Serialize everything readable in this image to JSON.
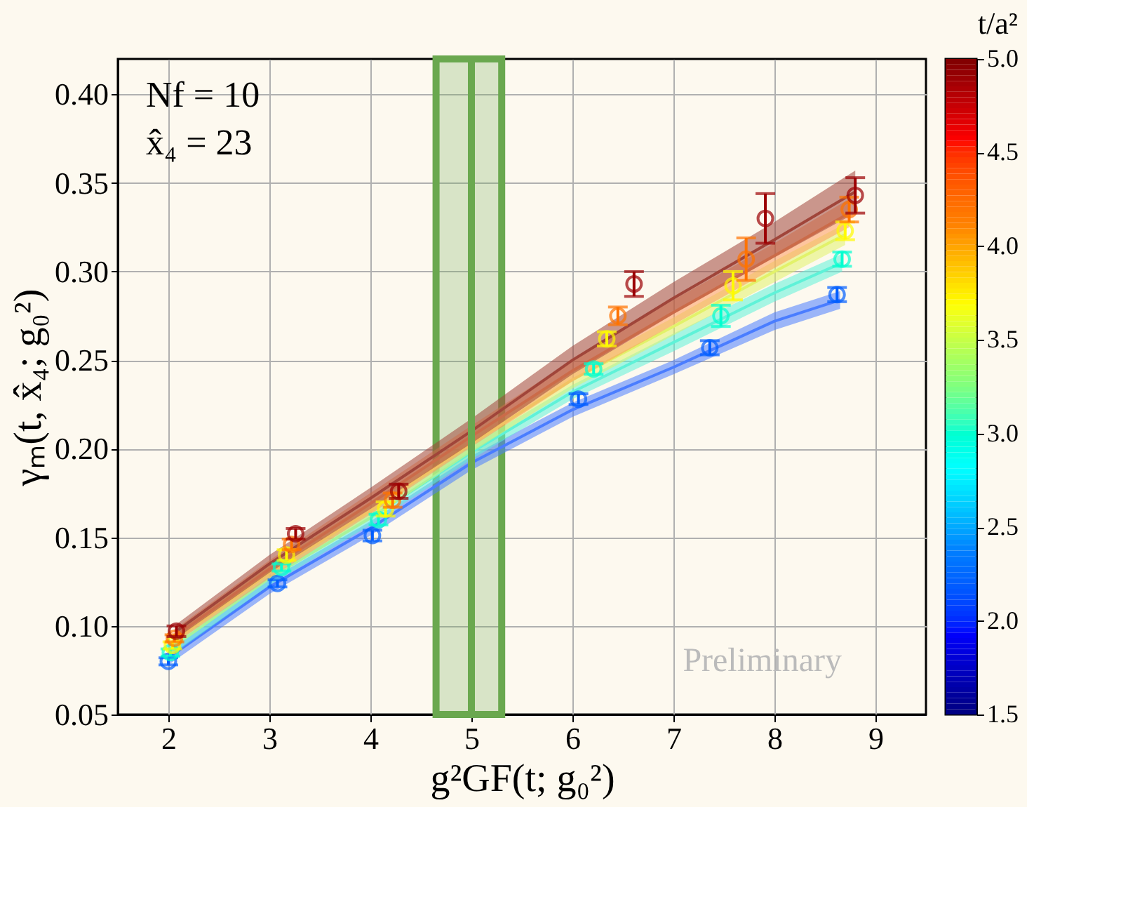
{
  "chart_data": {
    "type": "scatter",
    "xlabel": "g²GF(t; g₀²)",
    "ylabel": "γₘ(t, x̂₄; g₀²)",
    "legend_title": "t/a²",
    "annotations": [
      "Nf = 10",
      "x̂₄ = 23",
      "Preliminary"
    ],
    "xlim": [
      1.5,
      9.5
    ],
    "xticks": [
      2,
      3,
      4,
      5,
      6,
      7,
      8,
      9
    ],
    "ylim": [
      0.05,
      0.42
    ],
    "yticks": [
      0.05,
      {
        "value": 0.1,
        "label": "0.10"
      },
      0.15,
      {
        "value": 0.2,
        "label": "0.20"
      },
      0.25,
      {
        "value": 0.3,
        "label": "0.30"
      },
      0.35,
      {
        "value": 0.4,
        "label": "0.40"
      }
    ],
    "clim": [
      1.5,
      5.0
    ],
    "cticks": [
      1.5,
      {
        "value": 2,
        "label": "2.0"
      },
      2.5,
      {
        "value": 3,
        "label": "3.0"
      },
      3.5,
      {
        "value": 4,
        "label": "4.0"
      },
      4.5,
      {
        "value": 5,
        "label": "5.0"
      }
    ],
    "grid": true,
    "marker": "circle",
    "ref_lines": [
      {
        "axis": "x",
        "value": 5,
        "color": "#6aa84f"
      }
    ],
    "bands": [
      {
        "axis": "x",
        "from": 4.65,
        "to": 5.3,
        "color": "#6aa84f"
      }
    ],
    "series": [
      {
        "type": "line",
        "marker": "none",
        "color": "#4a7dff",
        "x": [
          2,
          3,
          4,
          5,
          6,
          7,
          8,
          8.65
        ],
        "values": [
          0.082,
          0.122,
          0.155,
          0.192,
          0.222,
          0.246,
          0.272,
          0.284
        ],
        "lower": [
          0.078,
          0.118,
          0.151,
          0.188,
          0.218,
          0.242,
          0.267,
          0.279
        ],
        "upper": [
          0.086,
          0.126,
          0.159,
          0.196,
          0.226,
          0.25,
          0.277,
          0.289
        ]
      },
      {
        "type": "line",
        "marker": "none",
        "color": "#5ff2d8",
        "x": [
          2.02,
          3,
          4,
          5,
          6,
          7,
          8,
          8.67
        ],
        "values": [
          0.087,
          0.127,
          0.161,
          0.198,
          0.232,
          0.26,
          0.288,
          0.305
        ],
        "lower": [
          0.083,
          0.123,
          0.157,
          0.194,
          0.228,
          0.255,
          0.283,
          0.3
        ],
        "upper": [
          0.091,
          0.131,
          0.165,
          0.202,
          0.236,
          0.265,
          0.293,
          0.31
        ]
      },
      {
        "type": "line",
        "marker": "none",
        "color": "#e2f26a",
        "x": [
          2.04,
          3,
          4,
          5,
          6,
          7,
          8,
          8.7
        ],
        "values": [
          0.091,
          0.13,
          0.165,
          0.203,
          0.239,
          0.269,
          0.3,
          0.321
        ],
        "lower": [
          0.087,
          0.126,
          0.16,
          0.198,
          0.234,
          0.264,
          0.294,
          0.315
        ],
        "upper": [
          0.095,
          0.134,
          0.17,
          0.208,
          0.244,
          0.274,
          0.306,
          0.327
        ]
      },
      {
        "type": "line",
        "marker": "none",
        "color": "#ff9a5c",
        "x": [
          2.06,
          3,
          4,
          5,
          6,
          7,
          8,
          8.74
        ],
        "values": [
          0.094,
          0.132,
          0.169,
          0.207,
          0.244,
          0.277,
          0.309,
          0.333
        ],
        "lower": [
          0.09,
          0.127,
          0.163,
          0.201,
          0.238,
          0.27,
          0.302,
          0.325
        ],
        "upper": [
          0.098,
          0.137,
          0.175,
          0.213,
          0.25,
          0.284,
          0.316,
          0.341
        ]
      },
      {
        "type": "line",
        "marker": "none",
        "color": "#a0453a",
        "x": [
          2.08,
          3,
          4,
          5,
          6,
          7,
          8,
          8.8
        ],
        "values": [
          0.097,
          0.135,
          0.172,
          0.21,
          0.25,
          0.285,
          0.318,
          0.345
        ],
        "lower": [
          0.093,
          0.13,
          0.166,
          0.203,
          0.242,
          0.276,
          0.308,
          0.333
        ],
        "upper": [
          0.101,
          0.14,
          0.178,
          0.217,
          0.258,
          0.294,
          0.328,
          0.357
        ]
      },
      {
        "x": [
          2.0,
          3.08,
          4.02,
          6.06,
          7.36,
          8.62
        ],
        "values": [
          0.08,
          0.124,
          0.151,
          0.228,
          0.257,
          0.287
        ],
        "errors": [
          0.002,
          0.002,
          0.003,
          0.003,
          0.004,
          0.004
        ],
        "cvalues": [
          2.2,
          2.2,
          2.2,
          2.2,
          2.2,
          2.2
        ]
      },
      {
        "x": [
          2.02,
          3.12,
          4.08,
          6.21,
          7.47,
          8.67
        ],
        "values": [
          0.085,
          0.133,
          0.16,
          0.245,
          0.275,
          0.307
        ],
        "errors": [
          0.002,
          0.002,
          0.003,
          0.003,
          0.006,
          0.004
        ],
        "cvalues": [
          3.0,
          3.0,
          3.0,
          3.0,
          3.0,
          3.0
        ]
      },
      {
        "x": [
          2.04,
          3.17,
          4.15,
          6.34,
          7.59,
          8.7
        ],
        "values": [
          0.089,
          0.14,
          0.166,
          0.262,
          0.292,
          0.323
        ],
        "errors": [
          0.002,
          0.003,
          0.004,
          0.004,
          0.008,
          0.005
        ],
        "cvalues": [
          3.7,
          3.7,
          3.7,
          3.7,
          3.7,
          3.7
        ]
      },
      {
        "x": [
          2.06,
          3.22,
          4.22,
          6.45,
          7.72,
          8.74
        ],
        "values": [
          0.093,
          0.146,
          0.171,
          0.275,
          0.307,
          0.335
        ],
        "errors": [
          0.002,
          0.003,
          0.004,
          0.005,
          0.012,
          0.007
        ],
        "cvalues": [
          4.2,
          4.2,
          4.2,
          4.2,
          4.2,
          4.2
        ]
      },
      {
        "x": [
          2.08,
          3.26,
          4.28,
          6.61,
          7.91,
          8.8
        ],
        "values": [
          0.097,
          0.152,
          0.176,
          0.293,
          0.33,
          0.343
        ],
        "errors": [
          0.003,
          0.003,
          0.004,
          0.007,
          0.014,
          0.01
        ],
        "cvalues": [
          4.9,
          4.9,
          4.9,
          4.9,
          4.9,
          4.9
        ]
      }
    ]
  }
}
